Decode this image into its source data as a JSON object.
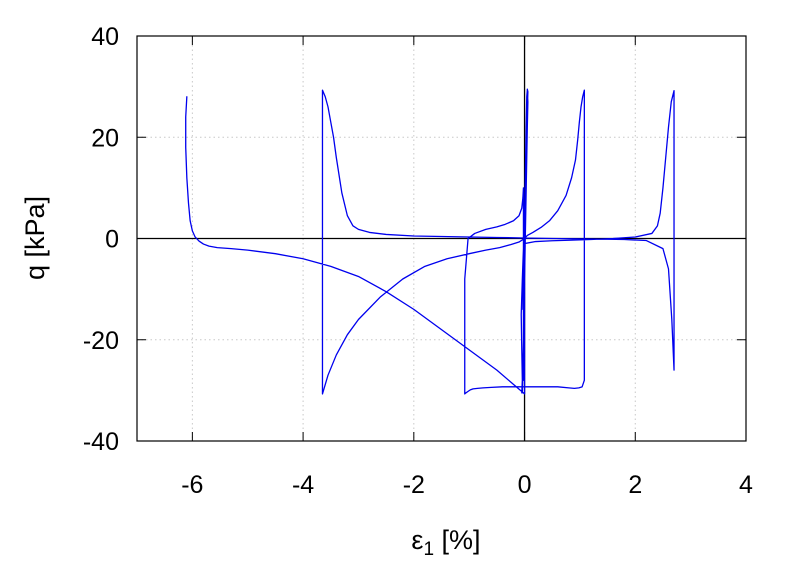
{
  "chart_data": {
    "type": "line",
    "title": "",
    "xlabel": {
      "symbol": "ε",
      "subscript": "1",
      "unit": " [%]"
    },
    "ylabel": "q [kPa]",
    "xlim": [
      -7,
      4
    ],
    "ylim": [
      -40,
      40
    ],
    "x_ticks": [
      {
        "value": -6,
        "label": "-6"
      },
      {
        "value": -4,
        "label": "-4"
      },
      {
        "value": -2,
        "label": "-2"
      },
      {
        "value": 0,
        "label": "0"
      },
      {
        "value": 2,
        "label": "2"
      },
      {
        "value": 4,
        "label": "4"
      }
    ],
    "y_ticks": [
      {
        "value": -40,
        "label": "-40"
      },
      {
        "value": -20,
        "label": "-20"
      },
      {
        "value": 0,
        "label": "0"
      },
      {
        "value": 20,
        "label": "20"
      },
      {
        "value": 40,
        "label": "40"
      }
    ],
    "grid": true,
    "zero_lines": true,
    "legend": "none",
    "colors": {
      "series": "#0000ee",
      "axes": "#000000",
      "grid": "#c8c8c8"
    },
    "series": [
      {
        "color": "#0000ee",
        "x": [
          0,
          0.01,
          0.02,
          0.03,
          0.04,
          0.05,
          0.06,
          0.05,
          0.04,
          0.03,
          0.02,
          0.01,
          0,
          -0.02,
          -0.04,
          -0.06,
          -0.05,
          -0.04,
          -0.05,
          -0.04,
          -0.03,
          -0.02,
          -0.01,
          0,
          0.01,
          0.02,
          0.03,
          0.04,
          0.05,
          0.06,
          0.05,
          0.04,
          0.03,
          0.02,
          0.01,
          0,
          -0.01,
          -0.02,
          -0.03,
          -0.02,
          -0.01,
          0,
          0.05,
          0.15,
          0.3,
          0.45,
          0.6,
          0.75,
          0.85,
          0.92,
          0.96,
          0.99,
          1.02,
          1.05,
          1.08,
          1.08,
          1.04,
          0.98,
          0.9,
          0.8,
          0.6,
          0.4,
          0.2,
          0,
          -0.2,
          -0.4,
          -0.6,
          -0.75,
          -0.85,
          -0.93,
          -0.98,
          -1.02,
          -1.06,
          -1.08,
          -1.08,
          -1.02,
          -0.9,
          -0.7,
          -0.5,
          -0.35,
          -0.2,
          -0.1,
          -0.05,
          -0.03,
          -0.02,
          -0.02,
          0,
          0.2,
          0.5,
          0.8,
          1.2,
          1.6,
          2,
          2.3,
          2.4,
          2.45,
          2.5,
          2.55,
          2.6,
          2.65,
          2.7,
          2.7,
          2.66,
          2.6,
          2.5,
          2.2,
          1.8,
          1.2,
          0.5,
          0,
          -0.5,
          -1,
          -1.5,
          -2,
          -2.5,
          -2.8,
          -3,
          -3.1,
          -3.2,
          -3.3,
          -3.4,
          -3.45,
          -3.5,
          -3.55,
          -3.6,
          -3.65,
          -3.65,
          -3.55,
          -3.4,
          -3.2,
          -3,
          -2.6,
          -2.2,
          -1.8,
          -1.4,
          -1,
          -0.7,
          -0.45,
          -0.25,
          -0.1,
          0,
          0,
          -0.5,
          -1,
          -1.5,
          -2,
          -2.5,
          -3,
          -3.5,
          -4,
          -4.5,
          -5,
          -5.3,
          -5.55,
          -5.7,
          -5.8,
          -5.88,
          -5.95,
          -6,
          -6.04,
          -6.07,
          -6.1,
          -6.12,
          -6.12,
          -6.1
        ],
        "y": [
          0,
          3,
          8,
          14,
          20,
          25,
          29,
          29.5,
          26,
          20,
          14,
          8,
          3,
          -2,
          -8,
          -15,
          -22,
          -28,
          -30.5,
          -30.5,
          -26,
          -20,
          -14,
          -8,
          -2,
          4,
          10,
          16,
          22,
          27,
          29.3,
          28,
          22,
          16,
          10,
          4,
          -2,
          -8,
          -14,
          -6,
          -2,
          0,
          0.6,
          1.2,
          2.2,
          3.5,
          5.5,
          8.5,
          12,
          15.5,
          19.5,
          23,
          26,
          28,
          29.3,
          -28,
          -29.3,
          -29.5,
          -29.6,
          -29.5,
          -29.3,
          -29.3,
          -29.3,
          -29.3,
          -29.3,
          -29.3,
          -29.4,
          -29.5,
          -29.6,
          -29.7,
          -29.9,
          -30.2,
          -30.5,
          -30.7,
          -8,
          0,
          1,
          1.8,
          2.3,
          2.8,
          3.5,
          4.5,
          6,
          8,
          10,
          -28,
          -1,
          -0.6,
          -0.45,
          -0.35,
          -0.2,
          0,
          0.3,
          1,
          2.5,
          5,
          10,
          16,
          22,
          27,
          29.2,
          -26,
          -16,
          -6,
          -2,
          -0.4,
          -0.2,
          -0.1,
          0,
          0.1,
          0.2,
          0.3,
          0.4,
          0.5,
          0.8,
          1.2,
          1.8,
          2.5,
          4.5,
          9,
          16,
          20,
          23,
          26,
          28,
          29.3,
          -30.7,
          -27,
          -23,
          -19,
          -16,
          -11.5,
          -8,
          -5.5,
          -4,
          -3,
          -2.3,
          -1.8,
          -1.2,
          -0.7,
          0,
          -30.7,
          -26,
          -22,
          -18,
          -14,
          -10.5,
          -7.5,
          -5.5,
          -4,
          -3,
          -2.3,
          -2,
          -1.8,
          -1.5,
          -1.1,
          -0.5,
          0.3,
          1.5,
          3.5,
          7,
          12,
          18,
          24,
          28
        ]
      }
    ]
  }
}
